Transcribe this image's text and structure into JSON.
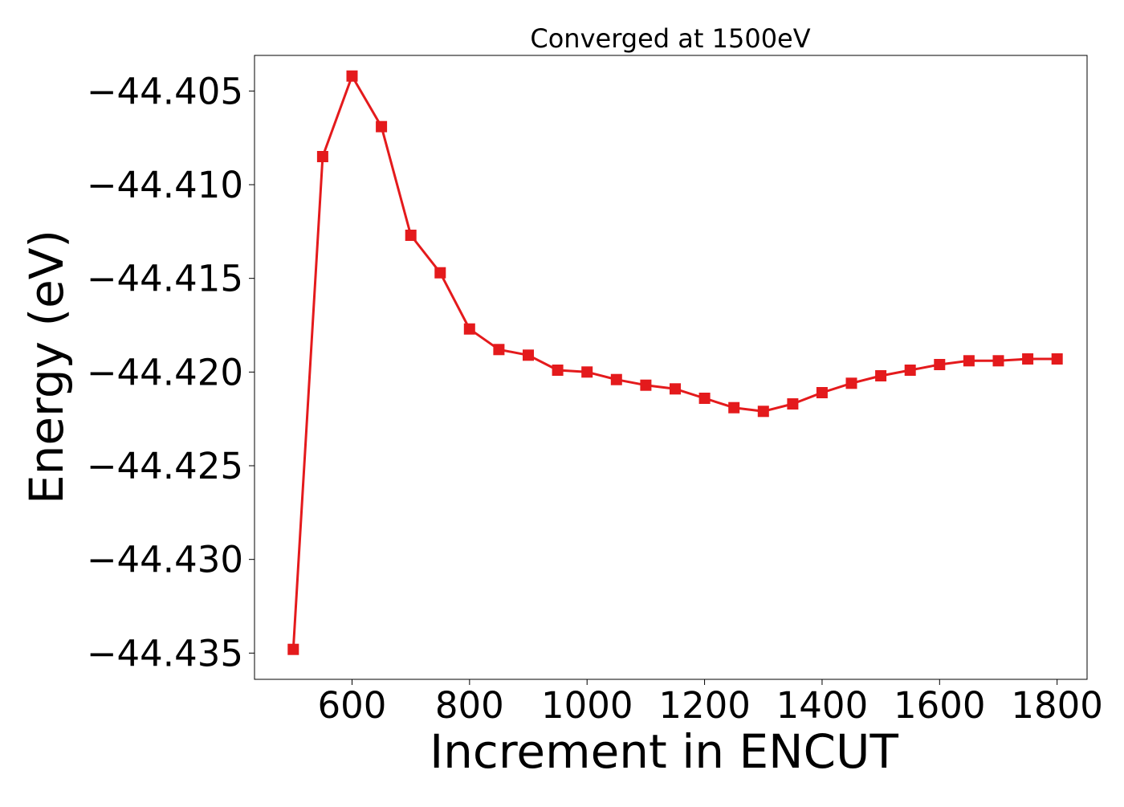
{
  "chart_data": {
    "type": "line",
    "title": "Converged at 1500eV",
    "xlabel": "Increment in ENCUT",
    "ylabel": "Energy (eV)",
    "xlim": [
      434,
      1851
    ],
    "ylim": [
      -44.4364,
      -44.4031
    ],
    "xticks": [
      600,
      800,
      1000,
      1200,
      1400,
      1600,
      1800
    ],
    "xtick_labels": [
      "600",
      "800",
      "1000",
      "1200",
      "1400",
      "1600",
      "1800"
    ],
    "yticks": [
      -44.405,
      -44.41,
      -44.415,
      -44.42,
      -44.425,
      -44.43,
      -44.435
    ],
    "ytick_labels": [
      "−44.405",
      "−44.410",
      "−44.415",
      "−44.420",
      "−44.425",
      "−44.430",
      "−44.435"
    ],
    "grid": false,
    "series": [
      {
        "color": "#e41a1c",
        "marker": "square",
        "x": [
          500,
          550,
          600,
          650,
          700,
          750,
          800,
          850,
          900,
          950,
          1000,
          1050,
          1100,
          1150,
          1200,
          1250,
          1300,
          1350,
          1400,
          1450,
          1500,
          1550,
          1600,
          1650,
          1700,
          1750,
          1800
        ],
        "y": [
          -44.4348,
          -44.4085,
          -44.4042,
          -44.4069,
          -44.4127,
          -44.4147,
          -44.4177,
          -44.4188,
          -44.4191,
          -44.4199,
          -44.42,
          -44.4204,
          -44.4207,
          -44.4209,
          -44.4214,
          -44.4219,
          -44.4221,
          -44.4217,
          -44.4211,
          -44.4206,
          -44.4202,
          -44.4199,
          -44.4196,
          -44.4194,
          -44.4194,
          -44.4193,
          -44.4193
        ]
      }
    ]
  }
}
